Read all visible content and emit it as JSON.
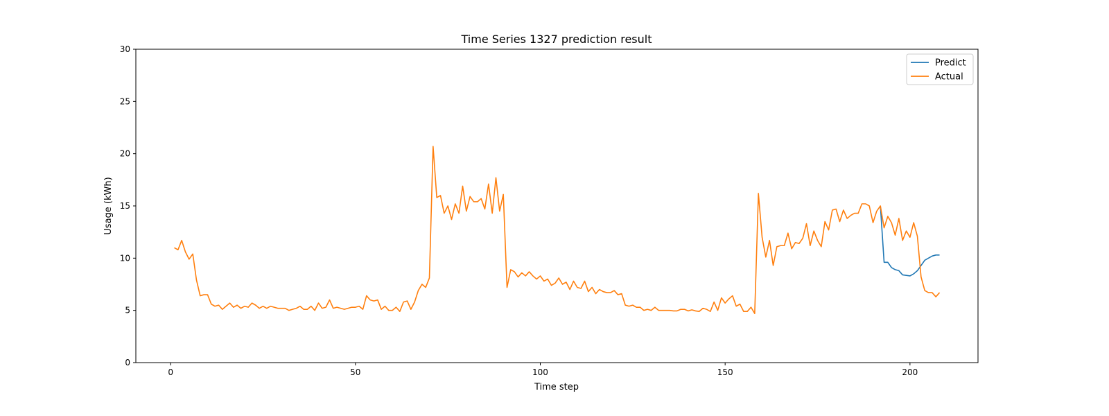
{
  "chart_data": {
    "type": "line",
    "title": "Time Series 1327 prediction result",
    "xlabel": "Time step",
    "ylabel": "Usage (kWh)",
    "xlim": [
      -9.4,
      218.4
    ],
    "ylim": [
      0,
      30
    ],
    "xticks": [
      0,
      50,
      100,
      150,
      200
    ],
    "yticks": [
      0,
      5,
      10,
      15,
      20,
      25,
      30
    ],
    "grid": false,
    "legend_position": "top-right",
    "series": [
      {
        "name": "Predict",
        "color": "#1f77b4",
        "x": [
          192,
          193,
          194,
          195,
          196,
          197,
          198,
          199,
          200,
          201,
          202,
          203,
          204,
          205,
          206,
          207,
          208
        ],
        "y": [
          15.0,
          9.6,
          9.6,
          9.1,
          8.9,
          8.8,
          8.4,
          8.35,
          8.3,
          8.5,
          8.8,
          9.3,
          9.8,
          10.0,
          10.2,
          10.3,
          10.3
        ]
      },
      {
        "name": "Actual",
        "color": "#ff7f0e",
        "x": [
          1,
          2,
          3,
          4,
          5,
          6,
          7,
          8,
          9,
          10,
          11,
          12,
          13,
          14,
          15,
          16,
          17,
          18,
          19,
          20,
          21,
          22,
          23,
          24,
          25,
          26,
          27,
          28,
          29,
          30,
          31,
          32,
          33,
          34,
          35,
          36,
          37,
          38,
          39,
          40,
          41,
          42,
          43,
          44,
          45,
          46,
          47,
          48,
          49,
          50,
          51,
          52,
          53,
          54,
          55,
          56,
          57,
          58,
          59,
          60,
          61,
          62,
          63,
          64,
          65,
          66,
          67,
          68,
          69,
          70,
          71,
          72,
          73,
          74,
          75,
          76,
          77,
          78,
          79,
          80,
          81,
          82,
          83,
          84,
          85,
          86,
          87,
          88,
          89,
          90,
          91,
          92,
          93,
          94,
          95,
          96,
          97,
          98,
          99,
          100,
          101,
          102,
          103,
          104,
          105,
          106,
          107,
          108,
          109,
          110,
          111,
          112,
          113,
          114,
          115,
          116,
          117,
          118,
          119,
          120,
          121,
          122,
          123,
          124,
          125,
          126,
          127,
          128,
          129,
          130,
          131,
          132,
          133,
          134,
          135,
          136,
          137,
          138,
          139,
          140,
          141,
          142,
          143,
          144,
          145,
          146,
          147,
          148,
          149,
          150,
          151,
          152,
          153,
          154,
          155,
          156,
          157,
          158,
          159,
          160,
          161,
          162,
          163,
          164,
          165,
          166,
          167,
          168,
          169,
          170,
          171,
          172,
          173,
          174,
          175,
          176,
          177,
          178,
          179,
          180,
          181,
          182,
          183,
          184,
          185,
          186,
          187,
          188,
          189,
          190,
          191,
          192,
          193,
          194,
          195,
          196,
          197,
          198,
          199,
          200,
          201,
          202,
          203,
          204,
          205,
          206,
          207,
          208
        ],
        "y": [
          11.0,
          10.8,
          11.7,
          10.6,
          9.9,
          10.4,
          7.9,
          6.4,
          6.5,
          6.5,
          5.6,
          5.4,
          5.5,
          5.1,
          5.4,
          5.7,
          5.3,
          5.5,
          5.2,
          5.4,
          5.3,
          5.7,
          5.5,
          5.2,
          5.4,
          5.2,
          5.4,
          5.3,
          5.2,
          5.2,
          5.2,
          5.0,
          5.1,
          5.2,
          5.4,
          5.1,
          5.1,
          5.4,
          5.0,
          5.7,
          5.2,
          5.3,
          6.0,
          5.2,
          5.3,
          5.2,
          5.1,
          5.2,
          5.3,
          5.3,
          5.4,
          5.1,
          6.4,
          6.0,
          5.9,
          6.0,
          5.1,
          5.4,
          5.0,
          5.0,
          5.3,
          4.9,
          5.8,
          5.9,
          5.1,
          5.8,
          6.9,
          7.5,
          7.2,
          8.1,
          20.7,
          15.8,
          16.0,
          14.3,
          15.0,
          13.7,
          15.2,
          14.3,
          16.9,
          14.5,
          15.9,
          15.4,
          15.4,
          15.7,
          14.7,
          17.1,
          14.3,
          17.7,
          14.5,
          16.1,
          7.2,
          8.9,
          8.7,
          8.2,
          8.6,
          8.3,
          8.7,
          8.3,
          8.0,
          8.3,
          7.8,
          8.0,
          7.4,
          7.6,
          8.1,
          7.5,
          7.7,
          7.0,
          7.8,
          7.2,
          7.1,
          7.8,
          6.8,
          7.2,
          6.6,
          7.0,
          6.8,
          6.7,
          6.7,
          6.9,
          6.5,
          6.6,
          5.5,
          5.4,
          5.5,
          5.3,
          5.3,
          5.0,
          5.1,
          5.0,
          5.3,
          5.0,
          5.0,
          5.0,
          5.0,
          4.95,
          4.95,
          5.1,
          5.1,
          4.95,
          5.05,
          4.95,
          4.9,
          5.2,
          5.1,
          4.9,
          5.8,
          5.0,
          6.2,
          5.7,
          6.1,
          6.4,
          5.4,
          5.6,
          4.9,
          4.9,
          5.3,
          4.7,
          16.2,
          12.0,
          10.1,
          11.7,
          9.3,
          11.1,
          11.2,
          11.2,
          12.4,
          10.9,
          11.5,
          11.4,
          11.9,
          13.3,
          11.2,
          12.6,
          11.7,
          11.1,
          13.5,
          12.7,
          14.6,
          14.7,
          13.5,
          14.6,
          13.8,
          14.1,
          14.3,
          14.3,
          15.2,
          15.2,
          15.0,
          13.4,
          14.5,
          15.0,
          12.9,
          14.0,
          13.4,
          12.2,
          13.8,
          11.7,
          12.6,
          12.0,
          13.4,
          12.1,
          8.2,
          6.9,
          6.7,
          6.7,
          6.3,
          6.7
        ]
      }
    ]
  }
}
